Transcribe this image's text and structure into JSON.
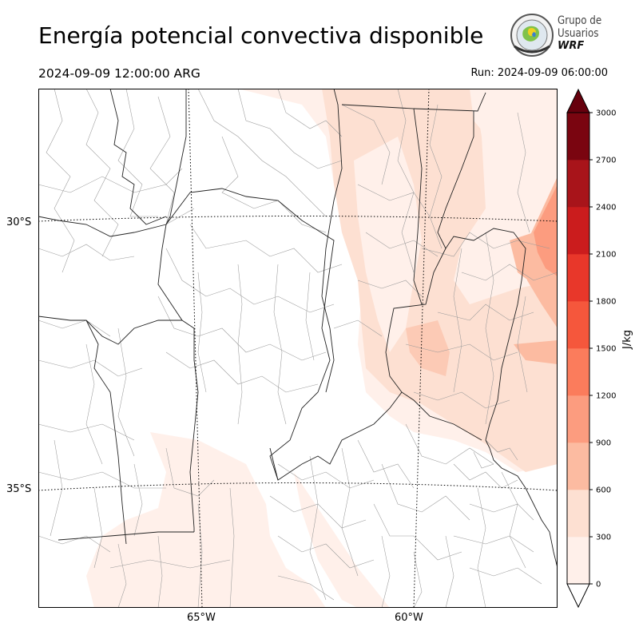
{
  "header": {
    "title": "Energía potencial convectiva disponible",
    "valid_time": "2024-09-09 12:00:00 ARG",
    "run_time": "Run: 2024-09-09 06:00:00"
  },
  "logo": {
    "line1": "Grupo de",
    "line2": "Usuarios",
    "line3": "WRF",
    "icon": "globe-seal-icon"
  },
  "map": {
    "lat_labels": [
      "30°S",
      "35°S"
    ],
    "lon_labels": [
      "65°W",
      "60°W"
    ]
  },
  "colorbar": {
    "label": "J/kg",
    "ticks": [
      "0",
      "300",
      "600",
      "900",
      "1200",
      "1500",
      "1800",
      "2100",
      "2400",
      "2700",
      "3000"
    ],
    "colors": [
      "#fff0ea",
      "#fde0d2",
      "#fcbba1",
      "#fc9c7f",
      "#fb7c5c",
      "#f5573c",
      "#e8372a",
      "#cb1c1d",
      "#a8141a",
      "#7a0510"
    ],
    "over_color": "#67000d"
  }
}
